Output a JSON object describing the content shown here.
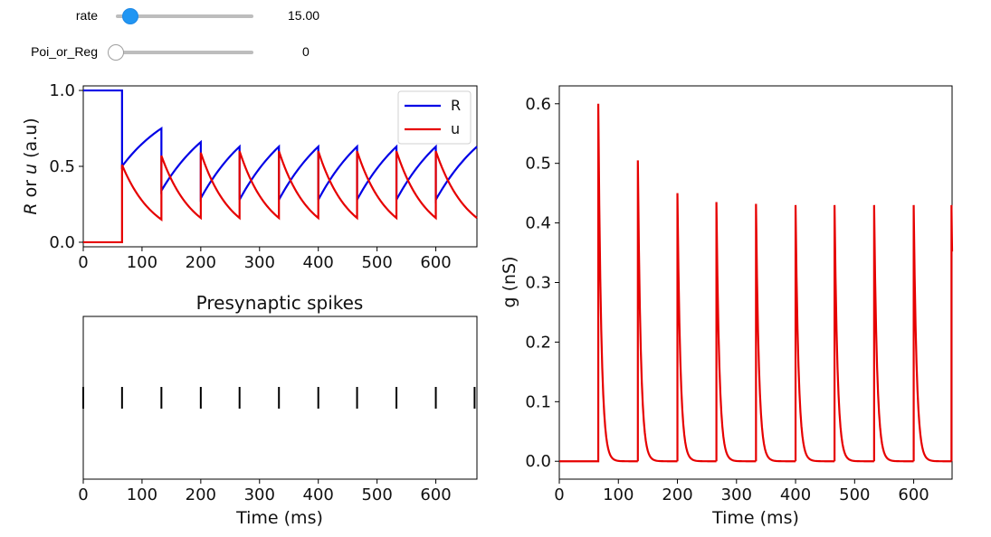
{
  "widgets": {
    "rate": {
      "label": "rate",
      "value": "15.00",
      "fraction": 0.05,
      "color": "#2196f3"
    },
    "poi_or_reg": {
      "label": "Poi_or_Reg",
      "value": "0",
      "fraction": 0.0
    }
  },
  "chart_data": [
    {
      "type": "line",
      "ylabel_parts": [
        "R",
        " or ",
        "u",
        " (a.u)"
      ],
      "xlim": [
        0,
        670
      ],
      "ylim": [
        -0.03,
        1.03
      ],
      "xticks": [
        0,
        100,
        200,
        300,
        400,
        500,
        600
      ],
      "yticks": [
        "0.0",
        "0.5",
        "1.0"
      ],
      "ytick_values": [
        0.0,
        0.5,
        1.0
      ],
      "legend_position": "upper right",
      "series": [
        {
          "name": "R",
          "color": "#0000e6",
          "points": [
            [
              0,
              1.0
            ],
            [
              66,
              1.0
            ],
            [
              66,
              0.5
            ],
            [
              133,
              0.75
            ],
            [
              133,
              0.34
            ],
            [
              200,
              0.66
            ],
            [
              200,
              0.29
            ],
            [
              266,
              0.63
            ],
            [
              266,
              0.28
            ],
            [
              333,
              0.63
            ],
            [
              333,
              0.28
            ],
            [
              400,
              0.63
            ],
            [
              400,
              0.28
            ],
            [
              466,
              0.63
            ],
            [
              466,
              0.28
            ],
            [
              533,
              0.63
            ],
            [
              533,
              0.28
            ],
            [
              600,
              0.63
            ],
            [
              600,
              0.28
            ],
            [
              670,
              0.63
            ]
          ]
        },
        {
          "name": "u",
          "color": "#e60000",
          "points": [
            [
              0,
              0.0
            ],
            [
              66,
              0.0
            ],
            [
              66,
              0.51
            ],
            [
              133,
              0.15
            ],
            [
              133,
              0.57
            ],
            [
              200,
              0.16
            ],
            [
              200,
              0.59
            ],
            [
              266,
              0.16
            ],
            [
              266,
              0.6
            ],
            [
              333,
              0.16
            ],
            [
              333,
              0.6
            ],
            [
              400,
              0.16
            ],
            [
              400,
              0.6
            ],
            [
              466,
              0.16
            ],
            [
              466,
              0.6
            ],
            [
              533,
              0.16
            ],
            [
              533,
              0.6
            ],
            [
              600,
              0.16
            ],
            [
              600,
              0.6
            ],
            [
              670,
              0.16
            ]
          ]
        }
      ]
    },
    {
      "type": "scatter",
      "title": "Presynaptic spikes",
      "xlabel": "Time (ms)",
      "xlim": [
        0,
        670
      ],
      "xticks": [
        0,
        100,
        200,
        300,
        400,
        500,
        600
      ],
      "spike_times": [
        0,
        66,
        133,
        200,
        266,
        333,
        400,
        466,
        533,
        600,
        666
      ]
    },
    {
      "type": "line",
      "xlabel": "Time (ms)",
      "ylabel": "g (nS)",
      "xlim": [
        0,
        665
      ],
      "ylim": [
        -0.03,
        0.63
      ],
      "xticks": [
        0,
        100,
        200,
        300,
        400,
        500,
        600
      ],
      "yticks": [
        "0.0",
        "0.1",
        "0.2",
        "0.3",
        "0.4",
        "0.5",
        "0.6"
      ],
      "ytick_values": [
        0.0,
        0.1,
        0.2,
        0.3,
        0.4,
        0.5,
        0.6
      ],
      "series": [
        {
          "color": "#e60000",
          "spike_times": [
            66,
            133,
            200,
            266,
            333,
            400,
            466,
            533,
            600,
            664
          ],
          "peaks": [
            0.6,
            0.505,
            0.45,
            0.435,
            0.432,
            0.43,
            0.43,
            0.43,
            0.43,
            0.43
          ],
          "decay_tau_ms": 5
        }
      ]
    }
  ]
}
